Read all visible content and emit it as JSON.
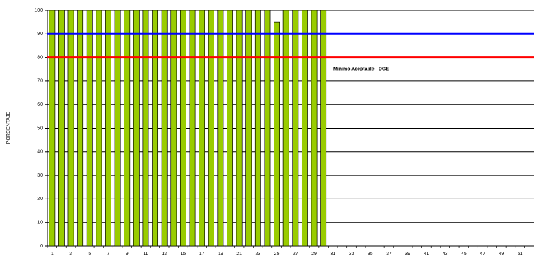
{
  "chart_data": {
    "type": "bar",
    "y_label": "PORCENTAJE",
    "categories": [
      1,
      null,
      3,
      null,
      5,
      null,
      7,
      null,
      9,
      null,
      11,
      null,
      13,
      null,
      15,
      null,
      17,
      null,
      19,
      null,
      21,
      null,
      23,
      null,
      25,
      null,
      27,
      null,
      29,
      null,
      31,
      null,
      33,
      null,
      35,
      null,
      37,
      null,
      39,
      null,
      41,
      null,
      43,
      null,
      45,
      null,
      47,
      null,
      49,
      null,
      51,
      null
    ],
    "values": [
      100,
      100,
      100,
      100,
      100,
      100,
      100,
      100,
      100,
      100,
      100,
      100,
      100,
      100,
      100,
      100,
      100,
      100,
      100,
      100,
      100,
      100,
      100,
      100,
      95,
      100,
      100,
      100,
      100,
      100,
      null,
      null,
      null,
      null,
      null,
      null,
      null,
      null,
      null,
      null,
      null,
      null,
      null,
      null,
      null,
      null,
      null,
      null,
      null,
      null,
      null,
      null
    ],
    "color": "#99cc00",
    "ylim": [
      0,
      100
    ],
    "yticks": [
      0,
      10,
      20,
      30,
      40,
      50,
      60,
      70,
      80,
      90,
      100
    ],
    "grid": true,
    "reference_lines": [
      {
        "value": 90,
        "color": "#0000ff"
      },
      {
        "value": 80,
        "color": "#ff0000",
        "label": "Mínimo Aceptable -  DGE"
      }
    ]
  }
}
